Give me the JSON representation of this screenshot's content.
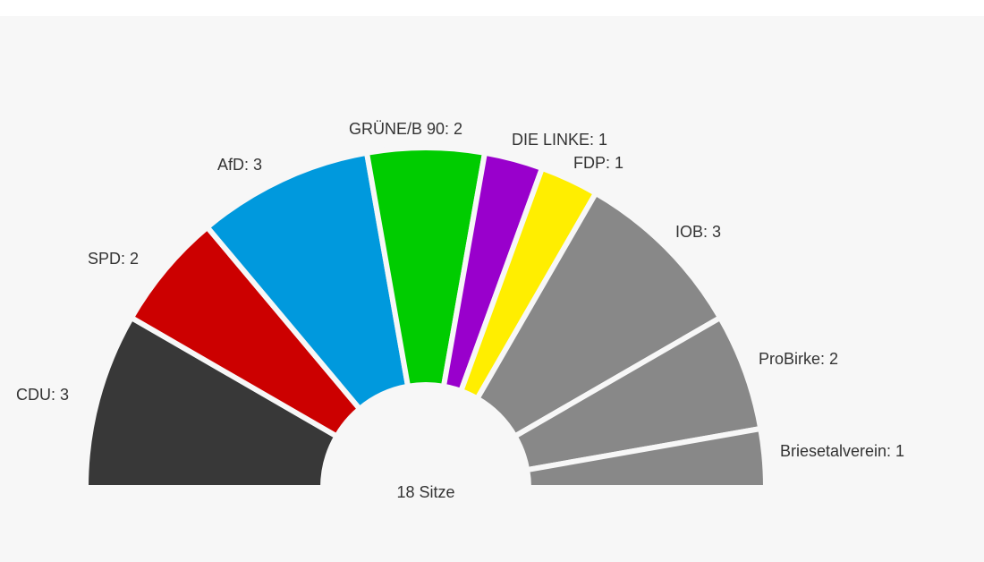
{
  "chart_data": {
    "type": "parliament-semicircle",
    "total_label": "18 Sitze",
    "total_seats": 18,
    "series": [
      {
        "name": "CDU",
        "value": 3,
        "label": "CDU: 3",
        "color": "#383838"
      },
      {
        "name": "SPD",
        "value": 2,
        "label": "SPD: 2",
        "color": "#cc0000"
      },
      {
        "name": "AfD",
        "value": 3,
        "label": "AfD: 3",
        "color": "#0099dd"
      },
      {
        "name": "GRÜNE/B 90",
        "value": 2,
        "label": "GRÜNE/B 90: 2",
        "color": "#00cc00"
      },
      {
        "name": "DIE LINKE",
        "value": 1,
        "label": "DIE LINKE: 1",
        "color": "#9900cc"
      },
      {
        "name": "FDP",
        "value": 1,
        "label": "FDP: 1",
        "color": "#ffee00"
      },
      {
        "name": "IOB",
        "value": 3,
        "label": "IOB: 3",
        "color": "#888888"
      },
      {
        "name": "ProBirke",
        "value": 2,
        "label": "ProBirke: 2",
        "color": "#888888"
      },
      {
        "name": "Briesetalverein",
        "value": 1,
        "label": "Briesetalverein: 1",
        "color": "#888888"
      }
    ]
  }
}
